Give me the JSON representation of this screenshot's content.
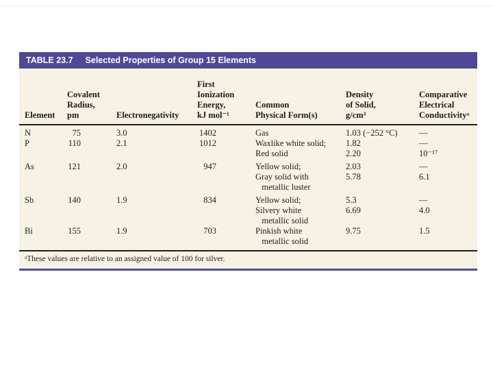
{
  "table": {
    "accent_color": "#4f4896",
    "body_color": "#f7f2e3",
    "title_label": "TABLE 23.7",
    "title": "Selected Properties of Group 15 Elements",
    "columns": [
      "Element",
      "Covalent\nRadius,\npm",
      "Electronegativity",
      "First\nIonization\nEnergy,\nkJ mol⁻¹",
      "Common\nPhysical Form(s)",
      "Density\nof Solid,\ng/cm³",
      "Comparative\nElectrical\nConductivityᵃ"
    ],
    "rows": [
      {
        "element": "N",
        "covalent_radius_pm": "75",
        "electronegativity": "3.0",
        "first_ionization_energy": "1402",
        "common_physical_forms": "Gas",
        "density_of_solid": "1.03 (−252 °C)",
        "conductivity": "—"
      },
      {
        "element": "P",
        "covalent_radius_pm": "110",
        "electronegativity": "2.1",
        "first_ionization_energy": "1012",
        "common_physical_forms": "Waxlike white solid;\nRed solid",
        "density_of_solid": "1.82\n2.20",
        "conductivity": "—\n10⁻¹⁷"
      },
      {
        "element": "As",
        "covalent_radius_pm": "121",
        "electronegativity": "2.0",
        "first_ionization_energy": "947",
        "common_physical_forms": "Yellow solid;\nGray solid with\n   metallic luster",
        "density_of_solid": "2.03\n5.78",
        "conductivity": "—\n6.1"
      },
      {
        "element": "Sb",
        "covalent_radius_pm": "140",
        "electronegativity": "1.9",
        "first_ionization_energy": "834",
        "common_physical_forms": "Yellow solid;\nSilvery white\n   metallic solid",
        "density_of_solid": "5.3\n6.69",
        "conductivity": "—\n4.0"
      },
      {
        "element": "Bi",
        "covalent_radius_pm": "155",
        "electronegativity": "1.9",
        "first_ionization_energy": "703",
        "common_physical_forms": "Pinkish white\n   metallic solid",
        "density_of_solid": "9.75",
        "conductivity": "1.5"
      }
    ],
    "footnote": "ᵃThese values are relative to an assigned value of 100 for silver."
  }
}
